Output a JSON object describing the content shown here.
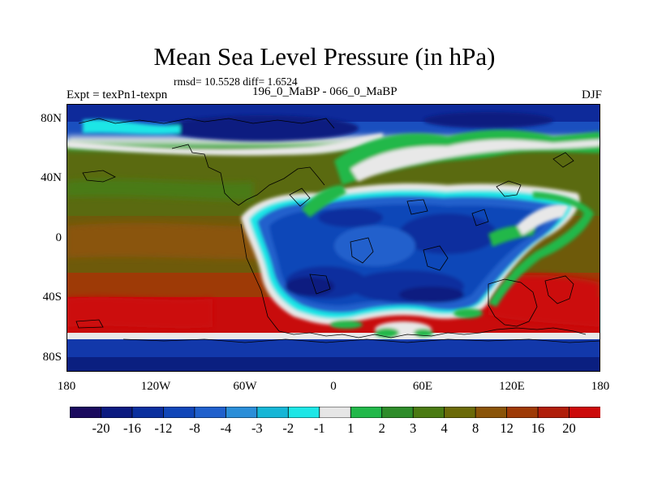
{
  "map": {
    "title": "Mean Sea Level Pressure (in hPa)",
    "stats": "rmsd= 10.5528 diff= 1.6524",
    "experiment_label": "Expt = texPn1-texpn",
    "difference_label": "196_0_MaBP - 066_0_MaBP",
    "season": "DJF",
    "latitude_ticks": [
      "80N",
      "40N",
      "0",
      "40S",
      "80S"
    ],
    "longitude_ticks": [
      "180",
      "120W",
      "60W",
      "0",
      "60E",
      "120E",
      "180"
    ]
  },
  "colorbar": {
    "labels": [
      "-20",
      "-16",
      "-12",
      "-8",
      "-4",
      "-3",
      "-2",
      "-1",
      "1",
      "2",
      "3",
      "4",
      "8",
      "12",
      "16",
      "20"
    ],
    "colors": [
      "#1a0a5e",
      "#0b1a80",
      "#0a2f9e",
      "#1046b8",
      "#2060cc",
      "#2b8ed8",
      "#16b6d6",
      "#1ee6e6",
      "#e6e6e6",
      "#22b84a",
      "#2e8c2a",
      "#4a7a12",
      "#6b6a08",
      "#8a5408",
      "#9e3a06",
      "#b01e0a",
      "#cc0a0a"
    ]
  }
}
